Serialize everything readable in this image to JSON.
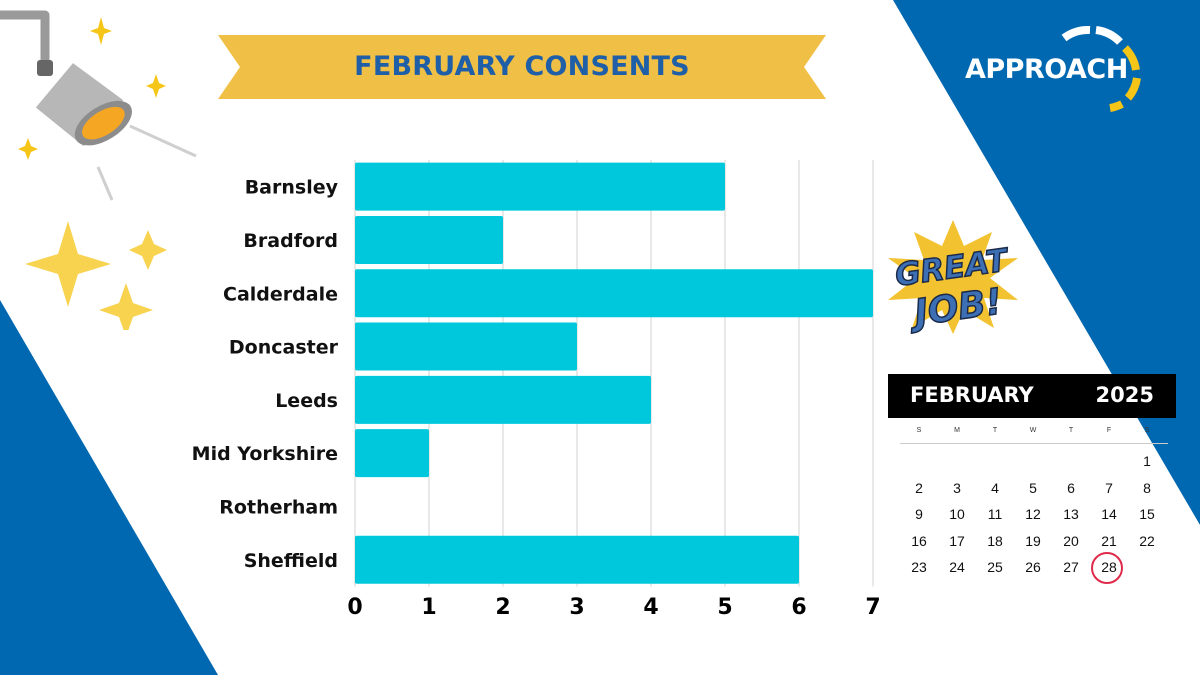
{
  "chart_data": {
    "type": "bar",
    "orientation": "horizontal",
    "title": "FEBRUARY CONSENTS",
    "categories": [
      "Barnsley",
      "Bradford",
      "Calderdale",
      "Doncaster",
      "Leeds",
      "Mid Yorkshire",
      "Rotherham",
      "Sheffield"
    ],
    "values": [
      5,
      2,
      7,
      3,
      4,
      1,
      0,
      6
    ],
    "xlim": [
      0,
      7
    ],
    "x_ticks": [
      "0",
      "1",
      "2",
      "3",
      "4",
      "5",
      "6",
      "7"
    ],
    "grid": true,
    "bar_color": "#00c8dc"
  },
  "logo": {
    "text": "APPROACH"
  },
  "badge": {
    "line1": "GREAT",
    "line2": "JOB!"
  },
  "calendar": {
    "month": "FEBRUARY",
    "year": "2025",
    "weekdays": [
      "S",
      "M",
      "T",
      "W",
      "T",
      "F",
      "S"
    ],
    "weeks": [
      [
        "",
        "",
        "",
        "",
        "",
        "",
        "1"
      ],
      [
        "2",
        "3",
        "4",
        "5",
        "6",
        "7",
        "8"
      ],
      [
        "9",
        "10",
        "11",
        "12",
        "13",
        "14",
        "15"
      ],
      [
        "16",
        "17",
        "18",
        "19",
        "20",
        "21",
        "22"
      ],
      [
        "23",
        "24",
        "25",
        "26",
        "27",
        "28",
        ""
      ]
    ],
    "highlighted_day": "28"
  },
  "colors": {
    "blue": "#0068b0",
    "banner": "#f0bf45",
    "title": "#1f5fa8",
    "highlight": "#e02a4a"
  }
}
